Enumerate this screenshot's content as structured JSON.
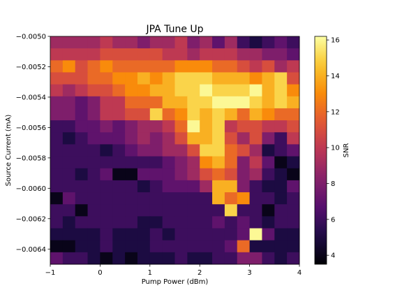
{
  "chart_data": {
    "type": "heatmap",
    "title": "JPA Tune Up",
    "xlabel": "Pump Power (dBm)",
    "ylabel": "Source Current (mA)",
    "colorbar_label": "SNR",
    "colormap": "inferno",
    "x_range": [
      -1,
      4
    ],
    "y_range": [
      -0.0065,
      -0.005
    ],
    "x_ticks": [
      "−1",
      "0",
      "1",
      "2",
      "3",
      "4"
    ],
    "y_ticks": [
      "−0.0064",
      "−0.0062",
      "−0.0060",
      "−0.0058",
      "−0.0056",
      "−0.0054",
      "−0.0052",
      "−0.0050"
    ],
    "color_range": [
      3.5,
      16.2
    ],
    "colorbar_ticks": [
      "4",
      "6",
      "8",
      "10",
      "12",
      "14",
      "16"
    ],
    "grid": false,
    "z": [
      [
        9,
        9,
        9,
        9,
        10,
        9,
        9,
        8,
        9,
        9,
        10,
        8,
        9,
        7,
        9,
        6,
        5,
        6,
        7,
        6
      ],
      [
        10,
        10,
        10,
        10,
        11,
        11,
        11,
        11,
        11,
        10,
        10,
        9,
        10,
        10,
        10,
        9,
        9,
        8,
        8,
        7
      ],
      [
        12,
        13,
        11,
        12,
        13,
        12,
        12,
        12,
        12,
        12,
        13,
        13,
        13,
        12,
        12,
        11,
        10,
        11,
        9,
        10
      ],
      [
        11,
        11,
        11,
        12,
        12,
        13,
        13,
        14,
        13,
        14,
        15,
        15,
        15,
        14,
        14,
        14,
        13,
        14,
        15,
        11
      ],
      [
        10,
        9,
        10,
        11,
        11,
        12,
        13,
        13,
        14,
        14,
        15,
        15,
        16,
        15,
        15,
        15,
        16,
        14,
        15,
        13
      ],
      [
        8,
        8,
        7,
        8,
        10,
        10,
        12,
        12,
        12,
        14,
        14,
        15,
        15,
        16,
        16,
        16,
        15,
        14,
        15,
        14
      ],
      [
        8,
        8,
        7,
        8,
        10,
        10,
        11,
        11,
        15,
        12,
        13,
        15,
        14,
        15,
        14,
        12,
        14,
        13,
        12,
        12
      ],
      [
        6,
        6,
        7,
        7,
        8,
        7,
        8,
        9,
        9,
        10,
        12,
        16,
        14,
        15,
        10,
        11,
        11,
        10,
        10,
        11
      ],
      [
        6,
        5,
        6,
        7,
        7,
        7,
        8,
        9,
        8,
        9,
        11,
        14,
        14,
        15,
        11,
        9,
        11,
        8,
        6,
        10
      ],
      [
        6,
        6,
        6,
        6,
        5,
        6,
        7,
        8,
        8,
        9,
        9,
        11,
        15,
        15,
        12,
        11,
        9,
        5,
        6,
        7
      ],
      [
        6,
        6,
        6,
        6,
        6,
        6,
        6,
        6,
        6,
        7,
        8,
        9,
        13,
        14,
        12,
        8,
        10,
        7,
        4,
        5
      ],
      [
        6,
        6,
        5,
        6,
        7,
        4,
        4,
        7,
        7,
        7,
        8,
        9,
        11,
        12,
        11,
        8,
        9,
        6,
        5,
        4
      ],
      [
        6,
        6,
        6,
        6,
        6,
        6,
        6,
        5,
        6,
        7,
        7,
        7,
        9,
        14,
        14,
        8,
        6,
        5,
        5,
        7
      ],
      [
        4,
        7,
        6,
        6,
        6,
        6,
        6,
        6,
        6,
        6,
        6,
        6,
        6,
        14,
        12,
        13,
        6,
        6,
        5,
        6
      ],
      [
        6,
        6,
        4,
        6,
        6,
        6,
        6,
        6,
        6,
        6,
        6,
        6,
        6,
        6,
        15,
        6,
        6,
        4,
        6,
        6
      ],
      [
        6,
        5,
        6,
        6,
        6,
        6,
        6,
        5,
        5,
        6,
        6,
        6,
        6,
        7,
        6,
        7,
        6,
        5,
        6,
        6
      ],
      [
        5,
        5,
        5,
        5,
        6,
        5,
        5,
        5,
        6,
        5,
        6,
        6,
        6,
        6,
        6,
        7,
        16,
        7,
        5,
        5
      ],
      [
        4,
        4,
        5,
        5,
        6,
        5,
        5,
        5,
        6,
        6,
        6,
        6,
        6,
        6,
        7,
        12,
        5,
        5,
        5,
        5
      ],
      [
        7,
        6,
        6,
        5,
        4,
        5,
        4,
        5,
        5,
        5,
        6,
        5,
        5,
        6,
        6,
        8,
        8,
        6,
        5,
        6
      ]
    ]
  }
}
